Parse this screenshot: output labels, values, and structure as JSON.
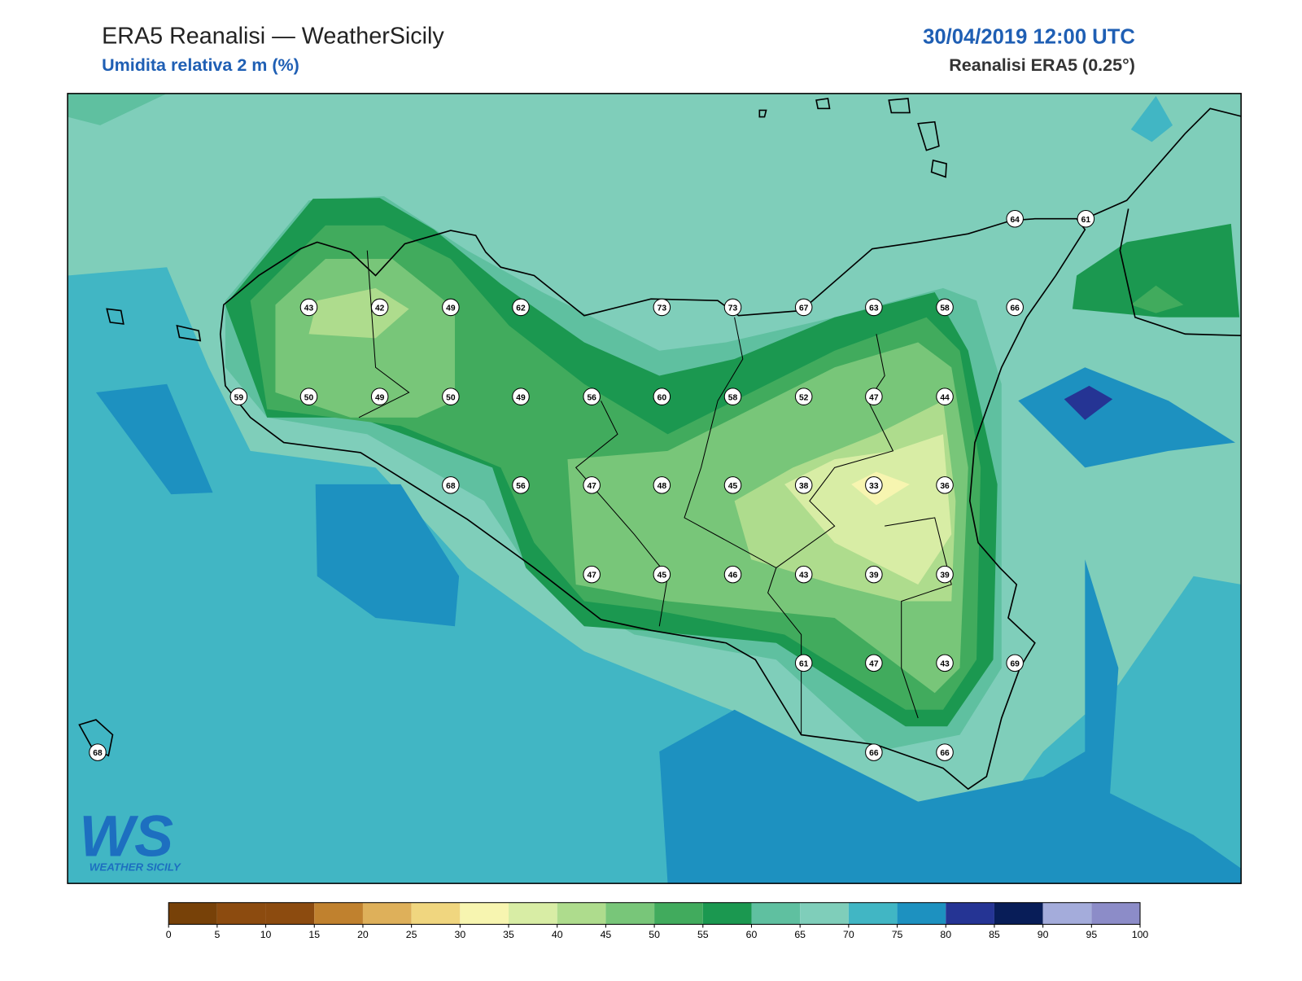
{
  "header": {
    "title": "ERA5 Reanalisi — WeatherSicily",
    "subtitle": "Umidita relativa 2 m (%)",
    "datetime": "30/04/2019 12:00 UTC",
    "source": "Reanalisi ERA5 (0.25°)"
  },
  "logo": {
    "mark": "WS",
    "text": "WEATHER SICILY"
  },
  "stations": {
    "values": [
      64,
      61,
      43,
      42,
      49,
      62,
      73,
      73,
      67,
      63,
      58,
      66,
      59,
      50,
      49,
      50,
      49,
      56,
      60,
      58,
      52,
      47,
      44,
      68,
      56,
      47,
      48,
      45,
      38,
      33,
      36,
      47,
      45,
      46,
      43,
      39,
      39,
      61,
      47,
      43,
      69,
      68,
      66,
      66
    ]
  },
  "colorbar": {
    "ticks": [
      0,
      5,
      10,
      15,
      20,
      25,
      30,
      35,
      40,
      45,
      50,
      55,
      60,
      65,
      70,
      75,
      80,
      85,
      90,
      95,
      100
    ],
    "colors": [
      "#774108",
      "#8c4b0f",
      "#8c4b0f",
      "#c0812e",
      "#deb05a",
      "#f0d67f",
      "#f7f5b0",
      "#d8eda5",
      "#aedc8d",
      "#78c679",
      "#41ab5d",
      "#1b9850",
      "#5fc0a0",
      "#7fceba",
      "#41b6c4",
      "#1d91c0",
      "#253494",
      "#081d58",
      "#a4acdb",
      "#8c8cc8"
    ]
  }
}
